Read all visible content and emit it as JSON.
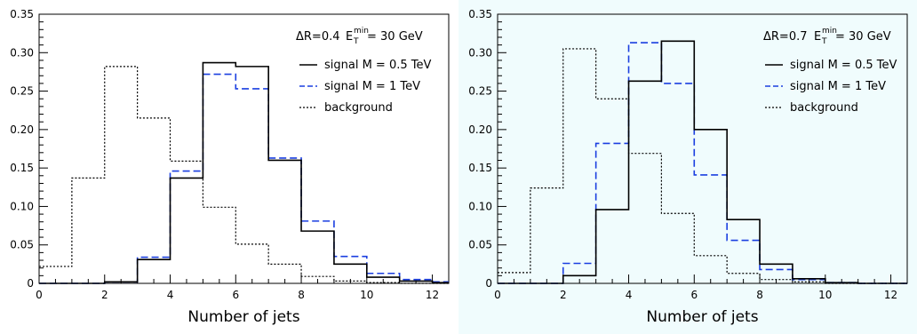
{
  "chart_data": [
    {
      "type": "histogram",
      "annotation": {
        "delta_r": "ΔR=0.4",
        "et_symbol": "E",
        "et_sub": "T",
        "et_sup": "min",
        "et_value": "= 30 GeV"
      },
      "xlabel": "Number of jets",
      "ylabel": "",
      "xlim": [
        0,
        12.5
      ],
      "ylim": [
        0,
        0.35
      ],
      "xticks": [
        "0",
        "2",
        "4",
        "6",
        "8",
        "10",
        "12"
      ],
      "yticks": [
        "0",
        "0.05",
        "0.10",
        "0.15",
        "0.20",
        "0.25",
        "0.30",
        "0.35"
      ],
      "legend_position": "top-right",
      "bin_edges": [
        0,
        1,
        2,
        3,
        4,
        5,
        6,
        7,
        8,
        9,
        10,
        11,
        12,
        13
      ],
      "series": [
        {
          "name": "signal  M = 0.5 TeV",
          "style": "solid",
          "color": "#000000",
          "values": [
            0,
            0,
            0.002,
            0.031,
            0.137,
            0.287,
            0.282,
            0.16,
            0.068,
            0.025,
            0.008,
            0.003,
            0.001
          ]
        },
        {
          "name": "signal  M = 1 TeV",
          "style": "dashed",
          "color": "#1a3ee0",
          "values": [
            0,
            0,
            0.002,
            0.034,
            0.146,
            0.272,
            0.253,
            0.163,
            0.081,
            0.035,
            0.013,
            0.005,
            0.002
          ]
        },
        {
          "name": "background",
          "style": "dotted",
          "color": "#000000",
          "values": [
            0.022,
            0.137,
            0.282,
            0.215,
            0.159,
            0.099,
            0.051,
            0.025,
            0.009,
            0.003,
            0.001,
            0.0,
            0.0
          ]
        }
      ]
    },
    {
      "type": "histogram",
      "annotation": {
        "delta_r": "ΔR=0.7",
        "et_symbol": "E",
        "et_sub": "T",
        "et_sup": "min",
        "et_value": "= 30 GeV"
      },
      "xlabel": "Number of jets",
      "ylabel": "",
      "xlim": [
        0,
        12.5
      ],
      "ylim": [
        0,
        0.35
      ],
      "xticks": [
        "0",
        "2",
        "4",
        "6",
        "8",
        "10",
        "12"
      ],
      "yticks": [
        "0",
        "0.05",
        "0.10",
        "0.15",
        "0.20",
        "0.25",
        "0.30",
        "0.35"
      ],
      "legend_position": "top-right",
      "bin_edges": [
        0,
        1,
        2,
        3,
        4,
        5,
        6,
        7,
        8,
        9,
        10,
        11,
        12,
        13
      ],
      "series": [
        {
          "name": "signal  M = 0.5 TeV",
          "style": "solid",
          "color": "#000000",
          "values": [
            0,
            0,
            0.01,
            0.096,
            0.263,
            0.315,
            0.2,
            0.083,
            0.025,
            0.006,
            0.001,
            0,
            0
          ]
        },
        {
          "name": "signal  M = 1 TeV",
          "style": "dashed",
          "color": "#1a3ee0",
          "values": [
            0,
            0,
            0.026,
            0.182,
            0.313,
            0.26,
            0.141,
            0.056,
            0.018,
            0.005,
            0.001,
            0,
            0
          ]
        },
        {
          "name": "background",
          "style": "dotted",
          "color": "#000000",
          "values": [
            0.014,
            0.124,
            0.305,
            0.24,
            0.169,
            0.091,
            0.036,
            0.013,
            0.005,
            0.002,
            0.0,
            0.0,
            0.0
          ]
        }
      ]
    }
  ]
}
